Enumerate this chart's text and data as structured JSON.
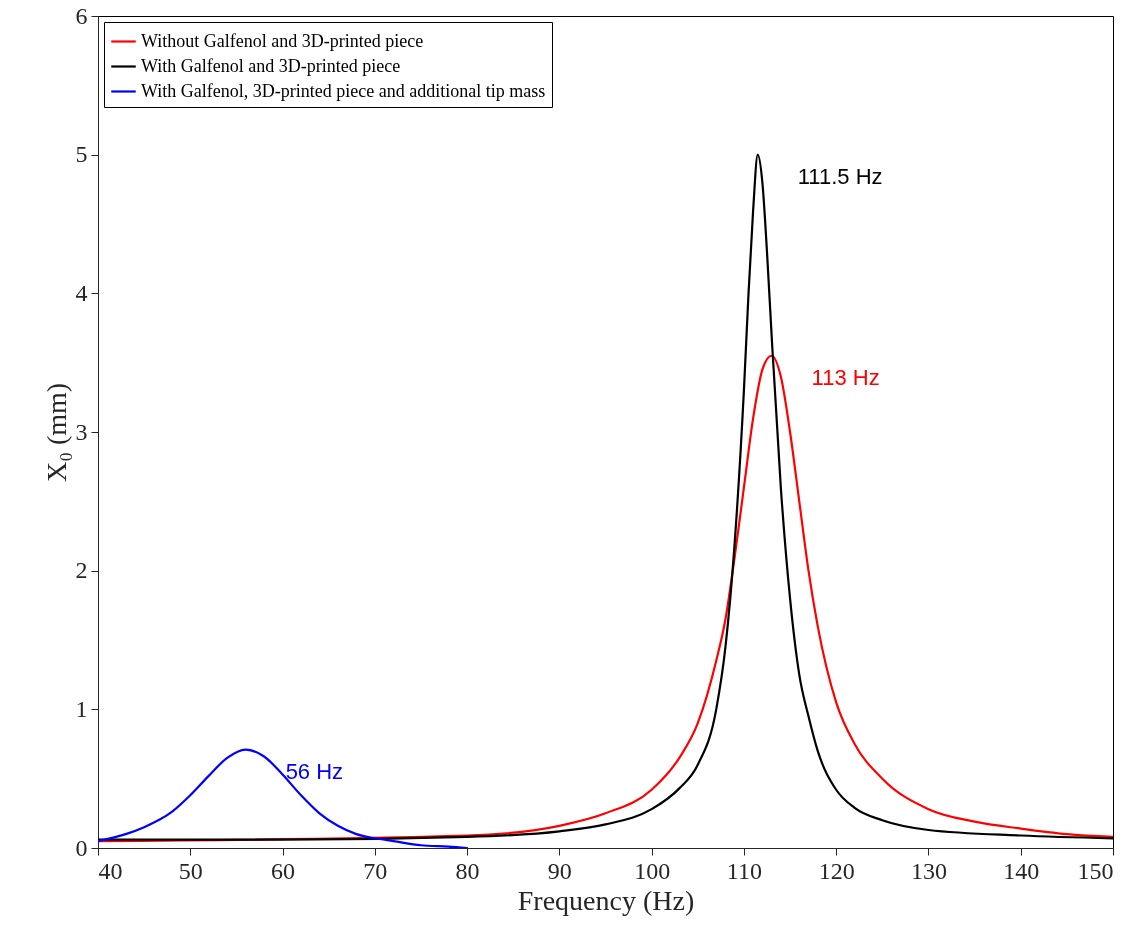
{
  "chart_data": {
    "type": "line",
    "xlabel": "Frequency (Hz)",
    "ylabel": "X₀ (mm)",
    "xlim": [
      40,
      150
    ],
    "xticks": [
      40,
      50,
      60,
      70,
      80,
      90,
      100,
      110,
      120,
      130,
      140,
      150
    ],
    "ylim": [
      0,
      6
    ],
    "yticks": [
      0,
      1,
      2,
      3,
      4,
      5,
      6
    ],
    "legend": "top left",
    "series": [
      {
        "name": "Without Galfenol and 3D-printed piece",
        "color": "#ff0000",
        "x": [
          40,
          80,
          90,
          95,
          100,
          103,
          105,
          107,
          108,
          109,
          110,
          111,
          112,
          113,
          114,
          115,
          116,
          117,
          118,
          120,
          122,
          125,
          130,
          135,
          140,
          145,
          150
        ],
        "values": [
          0.05,
          0.09,
          0.16,
          0.25,
          0.42,
          0.65,
          0.9,
          1.35,
          1.65,
          2.1,
          2.6,
          3.1,
          3.45,
          3.55,
          3.4,
          3.0,
          2.5,
          2.0,
          1.6,
          1.05,
          0.75,
          0.5,
          0.28,
          0.19,
          0.14,
          0.1,
          0.08
        ]
      },
      {
        "name": "With Galfenol and 3D-printed piece",
        "color": "#000000",
        "x": [
          40,
          60,
          80,
          90,
          95,
          100,
          103,
          105,
          107,
          108,
          109,
          110,
          110.5,
          111,
          111.5,
          112,
          112.5,
          113,
          114,
          115,
          116,
          117,
          118,
          120,
          122,
          125,
          130,
          140,
          150
        ],
        "values": [
          0.06,
          0.06,
          0.08,
          0.12,
          0.17,
          0.28,
          0.43,
          0.6,
          1.0,
          1.45,
          2.2,
          3.3,
          4.0,
          4.6,
          5.0,
          4.8,
          4.3,
          3.7,
          2.6,
          1.8,
          1.25,
          0.95,
          0.7,
          0.42,
          0.29,
          0.2,
          0.13,
          0.09,
          0.07
        ]
      },
      {
        "name": "With Galfenol, 3D-printed piece and additional tip mass",
        "color": "#0000ff",
        "x": [
          40,
          43,
          45,
          48,
          50,
          52,
          54,
          56,
          58,
          60,
          62,
          64,
          66,
          68,
          70,
          72,
          75,
          78,
          80
        ],
        "values": [
          0.05,
          0.1,
          0.15,
          0.26,
          0.38,
          0.52,
          0.65,
          0.71,
          0.66,
          0.53,
          0.38,
          0.25,
          0.16,
          0.1,
          0.07,
          0.05,
          0.02,
          0.01,
          0.0
        ]
      }
    ],
    "annotations": [
      {
        "text": "111.5 Hz",
        "x": 111.5,
        "y": 5.0
      },
      {
        "text": "113 Hz",
        "x": 113,
        "y": 3.55
      },
      {
        "text": "56 Hz",
        "x": 56,
        "y": 0.71
      }
    ]
  }
}
